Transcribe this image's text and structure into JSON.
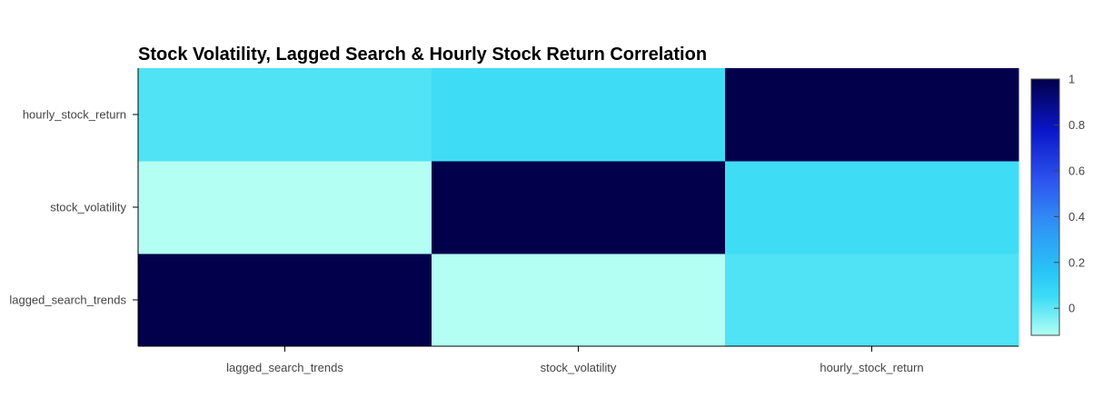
{
  "chart_data": {
    "type": "heatmap",
    "title": "Stock Volatility, Lagged Search & Hourly Stock Return Correlation",
    "xlabel": "",
    "ylabel": "",
    "x_categories": [
      "lagged_search_trends",
      "stock_volatility",
      "hourly_stock_return"
    ],
    "y_categories": [
      "lagged_search_trends",
      "stock_volatility",
      "hourly_stock_return"
    ],
    "z": [
      [
        1.0,
        -0.118,
        0.022
      ],
      [
        -0.118,
        1.0,
        0.047
      ],
      [
        0.022,
        0.047,
        1.0
      ]
    ],
    "colorscale": [
      [
        0.0,
        "#b3fff3"
      ],
      [
        0.15,
        "#3ddcf5"
      ],
      [
        0.25,
        "#29c4f7"
      ],
      [
        0.45,
        "#2f8df5"
      ],
      [
        0.6,
        "#2e55f0"
      ],
      [
        0.8,
        "#0a16c8"
      ],
      [
        1.0,
        "#02004a"
      ]
    ],
    "zrange": [
      -0.118,
      1.0
    ],
    "colorbar": {
      "ticks": [
        0,
        0.2,
        0.4,
        0.6,
        0.8,
        1
      ],
      "tick_labels": [
        "0",
        "0.2",
        "0.4",
        "0.6",
        "0.8",
        "1"
      ]
    }
  }
}
